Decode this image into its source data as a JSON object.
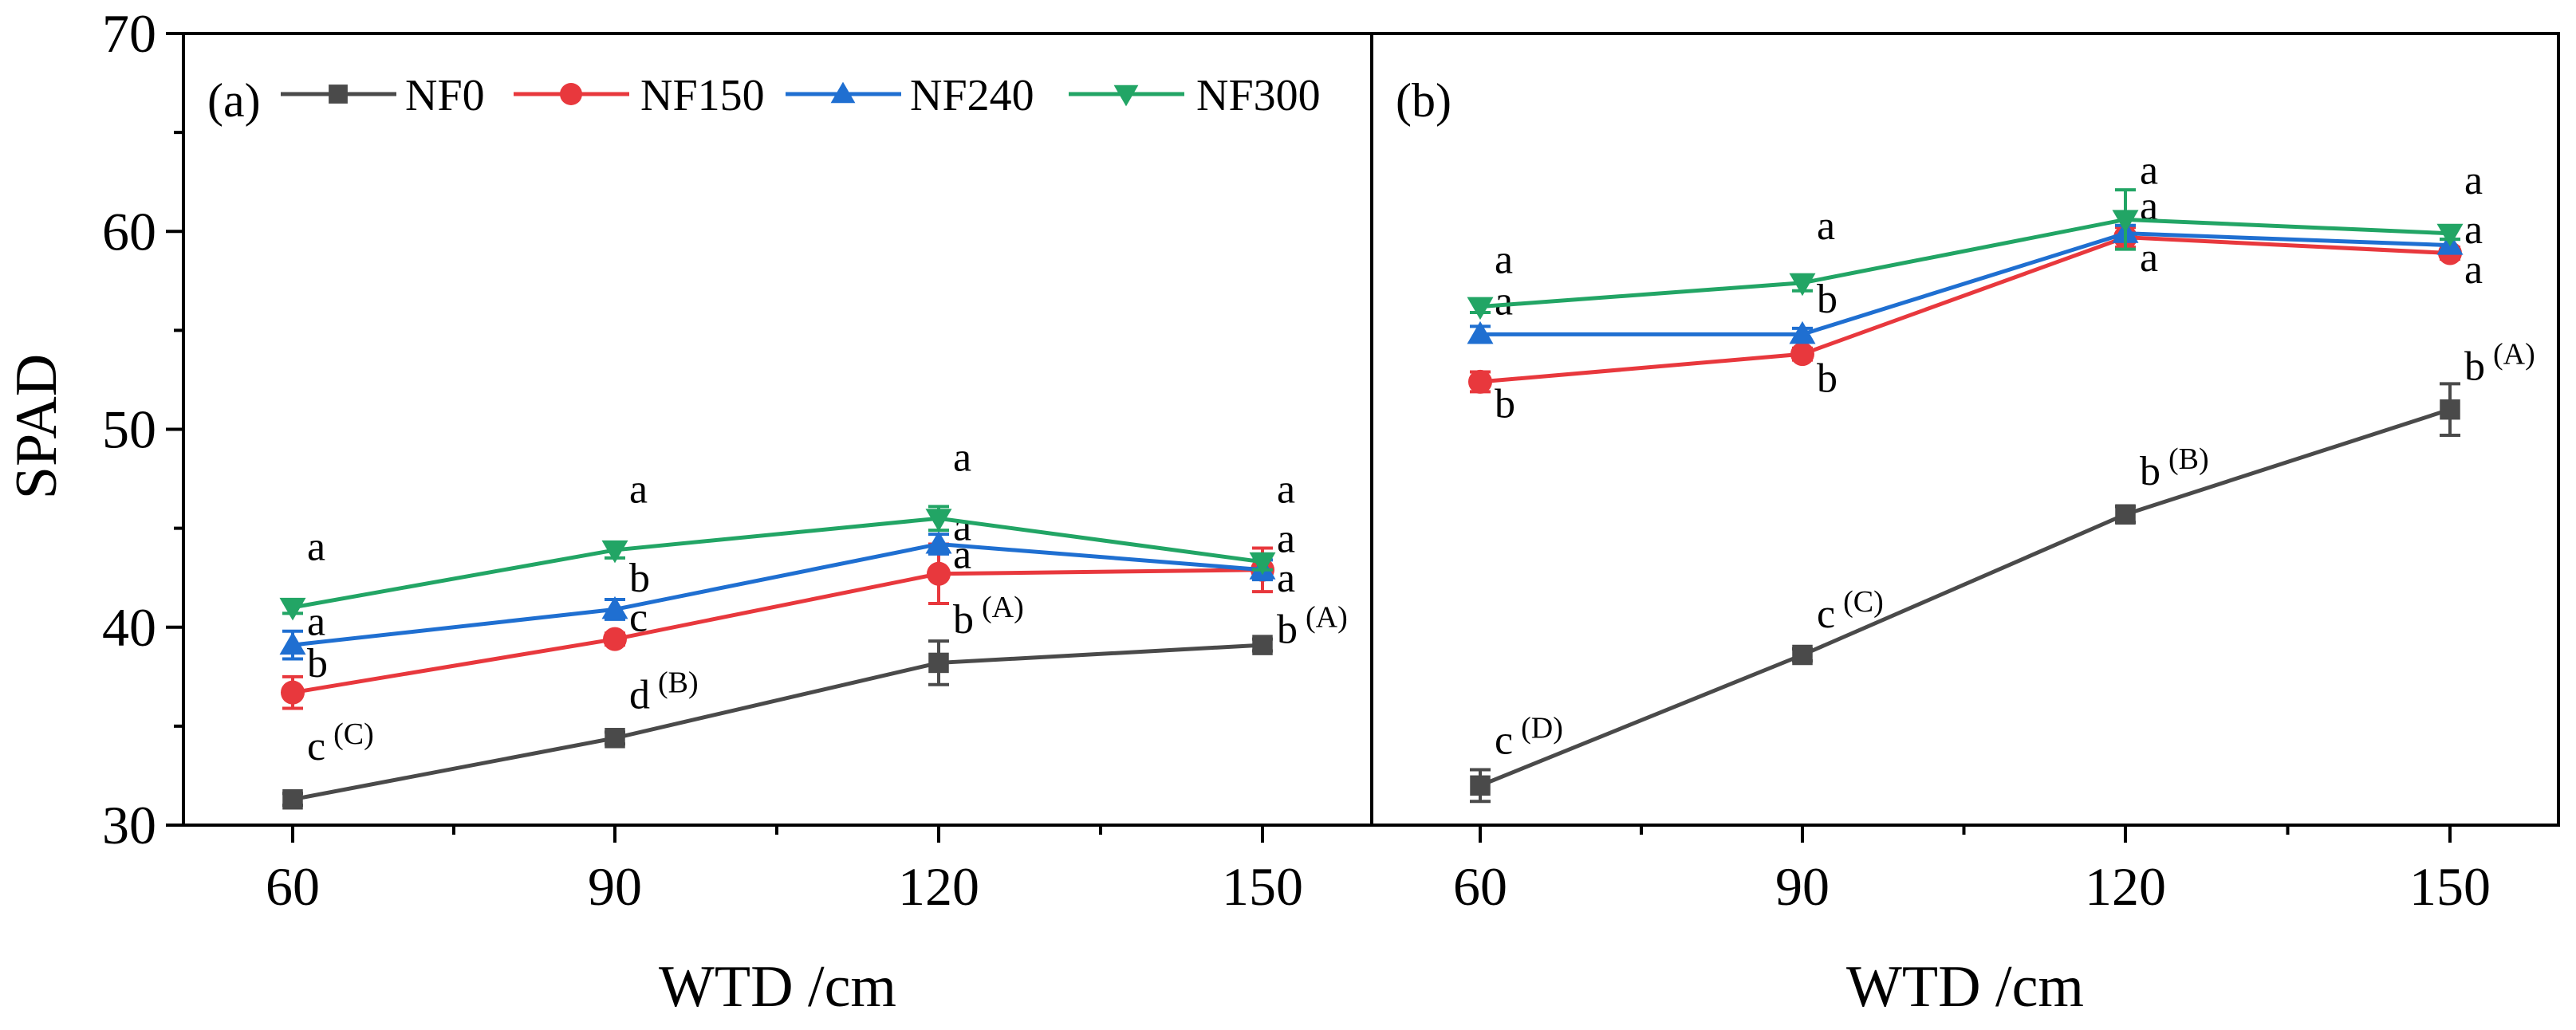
{
  "chart_data": {
    "type": "line",
    "ylabel": "SPAD",
    "ylim": [
      30,
      70
    ],
    "yticks": [
      "30",
      "40",
      "50",
      "60",
      "70"
    ],
    "xticks": [
      "60",
      "90",
      "120",
      "150"
    ],
    "x": [
      60,
      90,
      120,
      150
    ],
    "legend_placement": "top-left",
    "series_meta": [
      {
        "name": "NF0",
        "color": "#4a4a4a",
        "marker": "square"
      },
      {
        "name": "NF150",
        "color": "#e8383d",
        "marker": "circle"
      },
      {
        "name": "NF240",
        "color": "#1f6fd1",
        "marker": "triangle-up"
      },
      {
        "name": "NF300",
        "color": "#22a565",
        "marker": "triangle-down"
      }
    ],
    "panels": [
      {
        "label": "(a)",
        "xlabel": "WTD /cm",
        "series": [
          {
            "name": "NF0",
            "values": [
              31.3,
              34.4,
              38.2,
              39.1
            ],
            "errors": [
              0.3,
              0.3,
              1.1,
              0.3
            ],
            "annotations": [
              {
                "text": "c",
                "sup": "(C)",
                "x": 60,
                "y": 33.3
              },
              {
                "text": "d",
                "sup": "(B)",
                "x": 90,
                "y": 35.9
              },
              {
                "text": "b",
                "sup": "(A)",
                "x": 120,
                "y": 39.7
              },
              {
                "text": "b",
                "sup": "(A)",
                "x": 150,
                "y": 39.2
              }
            ]
          },
          {
            "name": "NF150",
            "values": [
              36.7,
              39.4,
              42.7,
              42.9
            ],
            "errors": [
              0.8,
              0.3,
              1.5,
              1.1
            ],
            "annotations": [
              {
                "text": "b",
                "sup": "",
                "x": 60,
                "y": 37.5
              },
              {
                "text": "c",
                "sup": "",
                "x": 90,
                "y": 39.8
              },
              {
                "text": "a",
                "sup": "",
                "x": 120,
                "y": 43.0
              },
              {
                "text": "a",
                "sup": "",
                "x": 150,
                "y": 43.8
              }
            ]
          },
          {
            "name": "NF240",
            "values": [
              39.1,
              40.9,
              44.2,
              42.9
            ],
            "errors": [
              0.7,
              0.5,
              0.5,
              0.5
            ],
            "annotations": [
              {
                "text": "a",
                "sup": "",
                "x": 60,
                "y": 39.6
              },
              {
                "text": "b",
                "sup": "",
                "x": 90,
                "y": 41.8
              },
              {
                "text": "a",
                "sup": "",
                "x": 120,
                "y": 44.4
              },
              {
                "text": "a",
                "sup": "",
                "x": 150,
                "y": 41.8
              }
            ]
          },
          {
            "name": "NF300",
            "values": [
              41.0,
              43.9,
              45.5,
              43.3
            ],
            "errors": [
              0.3,
              0.4,
              0.6,
              0.4
            ],
            "annotations": [
              {
                "text": "a",
                "sup": "",
                "x": 60,
                "y": 43.4
              },
              {
                "text": "a",
                "sup": "",
                "x": 90,
                "y": 46.3
              },
              {
                "text": "a",
                "sup": "",
                "x": 120,
                "y": 47.9
              },
              {
                "text": "a",
                "sup": "",
                "x": 150,
                "y": 46.3
              }
            ]
          }
        ]
      },
      {
        "label": "(b)",
        "xlabel": "WTD /cm",
        "series": [
          {
            "name": "NF0",
            "values": [
              32.0,
              38.6,
              45.7,
              51.0
            ],
            "errors": [
              0.8,
              0.3,
              0.4,
              1.3
            ],
            "annotations": [
              {
                "text": "c",
                "sup": "(D)",
                "x": 60,
                "y": 33.6
              },
              {
                "text": "c",
                "sup": "(C)",
                "x": 90,
                "y": 40.0
              },
              {
                "text": "b",
                "sup": "(B)",
                "x": 120,
                "y": 47.2
              },
              {
                "text": "b",
                "sup": "(A)",
                "x": 150,
                "y": 52.5
              }
            ]
          },
          {
            "name": "NF150",
            "values": [
              52.4,
              53.8,
              59.7,
              58.9
            ],
            "errors": [
              0.5,
              0.3,
              0.5,
              0.3
            ],
            "annotations": [
              {
                "text": "b",
                "sup": "",
                "x": 60,
                "y": 50.6
              },
              {
                "text": "b",
                "sup": "",
                "x": 90,
                "y": 51.9
              },
              {
                "text": "a",
                "sup": "",
                "x": 120,
                "y": 58.0
              },
              {
                "text": "a",
                "sup": "",
                "x": 150,
                "y": 57.4
              }
            ]
          },
          {
            "name": "NF240",
            "values": [
              54.8,
              54.8,
              59.9,
              59.3
            ],
            "errors": [
              0.4,
              0.3,
              0.4,
              0.3
            ],
            "annotations": [
              {
                "text": "a",
                "sup": "",
                "x": 60,
                "y": 55.8
              },
              {
                "text": "b",
                "sup": "",
                "x": 90,
                "y": 55.9
              },
              {
                "text": "a",
                "sup": "",
                "x": 120,
                "y": 60.6
              },
              {
                "text": "a",
                "sup": "",
                "x": 150,
                "y": 59.4
              }
            ]
          },
          {
            "name": "NF300",
            "values": [
              56.2,
              57.4,
              60.6,
              59.9
            ],
            "errors": [
              0.3,
              0.4,
              1.5,
              0.3
            ],
            "annotations": [
              {
                "text": "a",
                "sup": "",
                "x": 60,
                "y": 57.9
              },
              {
                "text": "a",
                "sup": "",
                "x": 90,
                "y": 59.6
              },
              {
                "text": "a",
                "sup": "",
                "x": 120,
                "y": 62.4
              },
              {
                "text": "a",
                "sup": "",
                "x": 150,
                "y": 61.9
              }
            ]
          }
        ]
      }
    ]
  }
}
